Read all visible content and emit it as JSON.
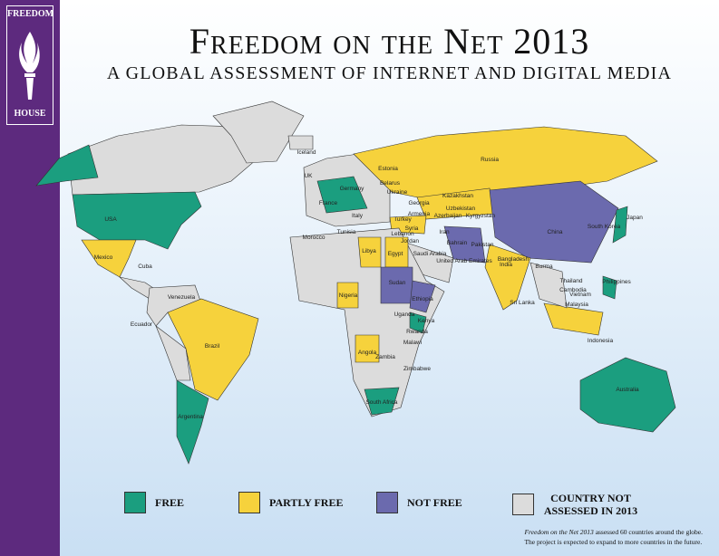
{
  "logo": {
    "top": "FREEDOM",
    "bottom": "HOUSE"
  },
  "header": {
    "title": "Freedom on the Net 2013",
    "subtitle": "A GLOBAL ASSESSMENT OF INTERNET AND DIGITAL MEDIA"
  },
  "legend": [
    {
      "label": "FREE",
      "color": "#1b9e7f"
    },
    {
      "label": "PARTLY FREE",
      "color": "#f6d23c"
    },
    {
      "label": "NOT FREE",
      "color": "#6b6aae"
    },
    {
      "label": "COUNTRY NOT ASSESSED IN 2013",
      "color": "#dcdcdc"
    }
  ],
  "countries": [
    "Iceland",
    "UK",
    "Estonia",
    "Belarus",
    "Germany",
    "Ukraine",
    "France",
    "Italy",
    "Georgia",
    "Kazakhstan",
    "Uzbekistan",
    "Armenia",
    "Azerbaijan",
    "Kyrgyzstan",
    "Turkey",
    "Syria",
    "Lebanon",
    "Jordan",
    "Iran",
    "Bahrain",
    "Saudi Arabia",
    "United Arab Emirates",
    "Pakistan",
    "India",
    "Bangladesh",
    "Burma",
    "China",
    "South Korea",
    "Japan",
    "Russia",
    "USA",
    "Mexico",
    "Cuba",
    "Venezuela",
    "Ecuador",
    "Brazil",
    "Argentina",
    "Morocco",
    "Tunisia",
    "Libya",
    "Egypt",
    "Sudan",
    "Ethiopia",
    "Nigeria",
    "Uganda",
    "Kenya",
    "Rwanda",
    "Angola",
    "Malawi",
    "Zambia",
    "Zimbabwe",
    "South Africa",
    "Sri Lanka",
    "Thailand",
    "Cambodia",
    "Vietnam",
    "Malaysia",
    "Philippines",
    "Indonesia",
    "Australia"
  ],
  "footnote": {
    "italic": "Freedom on the Net 2013",
    "line1": " assessed 60 countries around the globe.",
    "line2": "The project is expected to expand to more countries in the future."
  }
}
